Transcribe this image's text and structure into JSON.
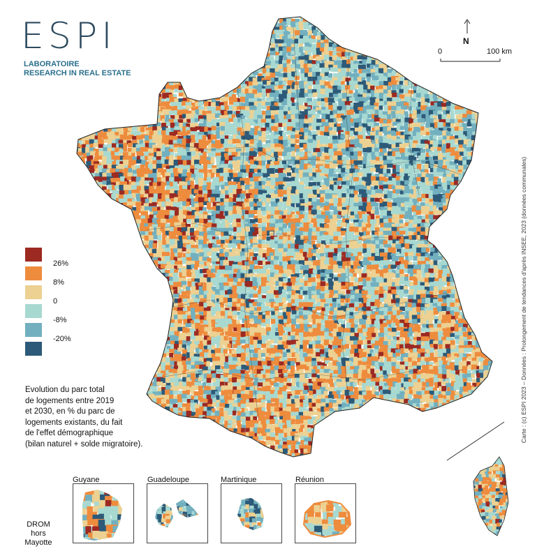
{
  "header": {
    "logo_text": "ESPI",
    "lab_line1": "LABORATOIRE",
    "lab_line2": "RESEARCH IN REAL ESTATE"
  },
  "north_label": "N",
  "scale": {
    "start": "0",
    "end": "100 km"
  },
  "credit": "Carte : (c) ESPI 2023 – Données : Prolongement de tendances d'après INSEE, 2023 (données communales)",
  "colors": {
    "c26": "#9c2a22",
    "c8": "#ee8c3e",
    "c0": "#ecd192",
    "cm8": "#a8d9d1",
    "cm20": "#72b0bf",
    "cmin": "#2d5a78"
  },
  "legend": {
    "breaks": [
      "26%",
      "8%",
      "0",
      "-8%",
      "-20%"
    ]
  },
  "description": [
    "Evolution du parc total",
    "de logements entre 2019",
    "et 2030, en % du parc de",
    "logements existants, du fait",
    "de l'effet démographique",
    "(bilan naturel + solde migratoire)."
  ],
  "insets": {
    "guyane": "Guyane",
    "guadeloupe": "Guadeloupe",
    "martinique": "Martinique",
    "reunion": "Réunion",
    "drom_label": [
      "DROM",
      "hors",
      "Mayotte"
    ]
  }
}
